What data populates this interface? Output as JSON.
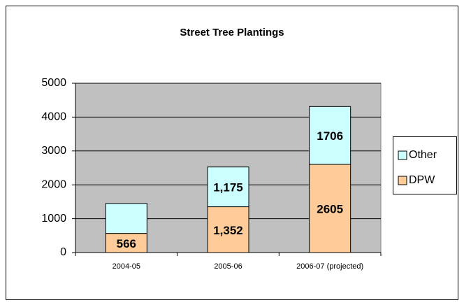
{
  "chart_data": {
    "type": "stacked_bar",
    "title": "Street Tree Plantings",
    "categories": [
      "2004-05",
      "2005-06",
      "2006-07 (projected)"
    ],
    "series": [
      {
        "name": "DPW",
        "color": "#ffcc99",
        "values": [
          566,
          1352,
          2605
        ],
        "value_labels": [
          "566",
          "1,352",
          "2605"
        ]
      },
      {
        "name": "Other",
        "color": "#ccffff",
        "values": [
          884,
          1175,
          1706
        ],
        "value_labels": [
          null,
          "1,175",
          "1706"
        ]
      }
    ],
    "ylim": [
      0,
      5000
    ],
    "yticks": [
      0,
      1000,
      2000,
      3000,
      4000,
      5000
    ],
    "grid": true,
    "legend": "right"
  }
}
